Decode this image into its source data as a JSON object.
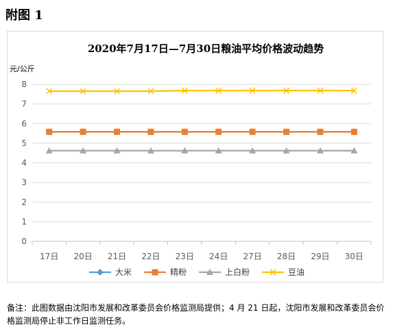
{
  "figure_label": "附图 1",
  "note": "备注：此图数据由沈阳市发展和改革委员会价格监测局提供；4 月 21 日起，沈阳市发展和改革委员会价格监测局停止非工作日监测任务。",
  "chart_data": {
    "type": "line",
    "title": "2020年7月17日—7月30日粮油平均价格波动趋势",
    "ylabel": "元/公斤",
    "xlabel": "",
    "categories": [
      "17日",
      "20日",
      "21日",
      "22日",
      "23日",
      "24日",
      "27日",
      "28日",
      "29日",
      "30日"
    ],
    "ylim": [
      0,
      8
    ],
    "yticks": [
      0,
      1,
      2,
      3,
      4,
      5,
      6,
      7,
      8
    ],
    "grid": true,
    "legend_position": "bottom",
    "series": [
      {
        "name": "大米",
        "color": "#5b9bd5",
        "marker": "diamond",
        "values": [
          5.58,
          5.58,
          5.58,
          5.58,
          5.58,
          5.58,
          5.58,
          5.58,
          5.58,
          5.58
        ]
      },
      {
        "name": "精粉",
        "color": "#ed7d31",
        "marker": "square",
        "values": [
          5.58,
          5.58,
          5.58,
          5.58,
          5.58,
          5.58,
          5.58,
          5.58,
          5.58,
          5.58
        ]
      },
      {
        "name": "上白粉",
        "color": "#a5a5a5",
        "marker": "triangle",
        "values": [
          4.62,
          4.62,
          4.62,
          4.62,
          4.62,
          4.62,
          4.62,
          4.62,
          4.62,
          4.62
        ]
      },
      {
        "name": "豆油",
        "color": "#ffc000",
        "marker": "x",
        "values": [
          7.65,
          7.65,
          7.65,
          7.65,
          7.68,
          7.68,
          7.68,
          7.68,
          7.68,
          7.68
        ]
      }
    ]
  }
}
